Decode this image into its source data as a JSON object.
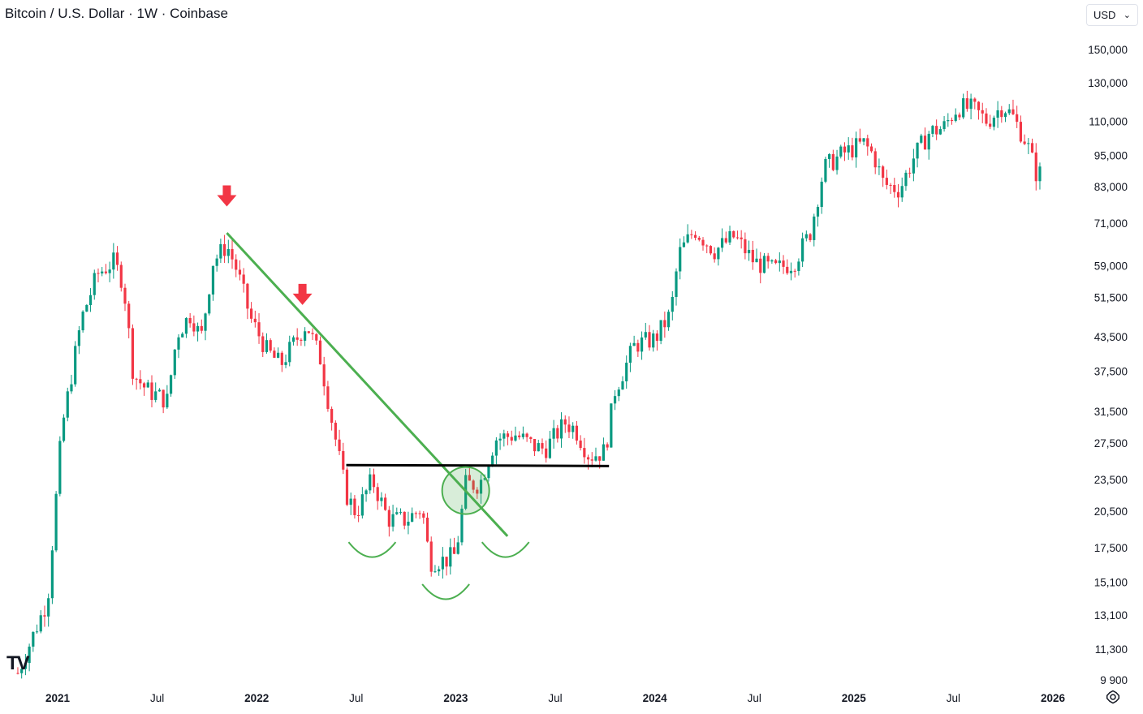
{
  "header": {
    "title": "Bitcoin / U.S. Dollar · 1W · Coinbase",
    "currency": "USD"
  },
  "logo_text": "TV",
  "icons": {
    "currency_dropdown": "chevron-down-icon",
    "settings": "gear-icon"
  },
  "colors": {
    "up": "#089981",
    "down": "#f23645",
    "trendline": "#4caf50",
    "neckline": "#000000",
    "arrow": "#f23645"
  },
  "chart_data": {
    "type": "candlestick",
    "scale": "log",
    "x_ticks": [
      {
        "label": "2021",
        "x": 2021.0,
        "year": true
      },
      {
        "label": "Jul",
        "x": 2021.5,
        "year": false
      },
      {
        "label": "2022",
        "x": 2022.0,
        "year": true
      },
      {
        "label": "Jul",
        "x": 2022.5,
        "year": false
      },
      {
        "label": "2023",
        "x": 2023.0,
        "year": true
      },
      {
        "label": "Jul",
        "x": 2023.5,
        "year": false
      },
      {
        "label": "2024",
        "x": 2024.0,
        "year": true
      },
      {
        "label": "Jul",
        "x": 2024.5,
        "year": false
      },
      {
        "label": "2025",
        "x": 2025.0,
        "year": true
      },
      {
        "label": "Jul",
        "x": 2025.5,
        "year": false
      },
      {
        "label": "2026",
        "x": 2026.0,
        "year": true
      }
    ],
    "y_ticks": [
      {
        "label": "150,000",
        "value": 150000
      },
      {
        "label": "130,000",
        "value": 130000
      },
      {
        "label": "110,000",
        "value": 110000
      },
      {
        "label": "95,000",
        "value": 95000
      },
      {
        "label": "83,000",
        "value": 83000
      },
      {
        "label": "71,000",
        "value": 71000
      },
      {
        "label": "59,000",
        "value": 59000
      },
      {
        "label": "51,500",
        "value": 51500
      },
      {
        "label": "43,500",
        "value": 43500
      },
      {
        "label": "37,500",
        "value": 37500
      },
      {
        "label": "31,500",
        "value": 31500
      },
      {
        "label": "27,500",
        "value": 27500
      },
      {
        "label": "23,500",
        "value": 23500
      },
      {
        "label": "20,500",
        "value": 20500
      },
      {
        "label": "17,500",
        "value": 17500
      },
      {
        "label": "15,100",
        "value": 15100
      },
      {
        "label": "13,100",
        "value": 13100
      },
      {
        "label": "11,300",
        "value": 11300
      },
      {
        "label": "9 900",
        "value": 9900
      }
    ],
    "x_range": [
      2020.8,
      2026.25
    ],
    "y_range": [
      9400,
      165000
    ],
    "price_path": [
      [
        2020.8,
        10200
      ],
      [
        2020.95,
        14000
      ],
      [
        2021.02,
        29000
      ],
      [
        2021.12,
        47000
      ],
      [
        2021.2,
        57000
      ],
      [
        2021.28,
        60000
      ],
      [
        2021.33,
        55000
      ],
      [
        2021.38,
        37000
      ],
      [
        2021.45,
        34500
      ],
      [
        2021.55,
        33000
      ],
      [
        2021.6,
        44000
      ],
      [
        2021.67,
        48000
      ],
      [
        2021.72,
        43000
      ],
      [
        2021.78,
        60000
      ],
      [
        2021.85,
        64500
      ],
      [
        2021.9,
        58000
      ],
      [
        2021.97,
        47000
      ],
      [
        2022.05,
        41000
      ],
      [
        2022.12,
        38500
      ],
      [
        2022.2,
        43000
      ],
      [
        2022.25,
        46000
      ],
      [
        2022.32,
        39500
      ],
      [
        2022.38,
        30000
      ],
      [
        2022.45,
        22000
      ],
      [
        2022.5,
        20300
      ],
      [
        2022.58,
        23500
      ],
      [
        2022.66,
        19800
      ],
      [
        2022.75,
        19700
      ],
      [
        2022.83,
        20800
      ],
      [
        2022.87,
        16500
      ],
      [
        2022.95,
        16600
      ],
      [
        2023.0,
        17000
      ],
      [
        2023.05,
        23000
      ],
      [
        2023.12,
        23000
      ],
      [
        2023.2,
        28000
      ],
      [
        2023.3,
        28500
      ],
      [
        2023.4,
        27000
      ],
      [
        2023.45,
        26800
      ],
      [
        2023.55,
        30000
      ],
      [
        2023.6,
        29200
      ],
      [
        2023.67,
        26000
      ],
      [
        2023.75,
        26500
      ],
      [
        2023.8,
        34500
      ],
      [
        2023.9,
        42000
      ],
      [
        2024.0,
        43000
      ],
      [
        2024.08,
        48000
      ],
      [
        2024.12,
        62000
      ],
      [
        2024.2,
        69000
      ],
      [
        2024.3,
        63000
      ],
      [
        2024.4,
        67000
      ],
      [
        2024.5,
        60000
      ],
      [
        2024.6,
        58000
      ],
      [
        2024.7,
        60000
      ],
      [
        2024.78,
        68000
      ],
      [
        2024.85,
        90000
      ],
      [
        2024.95,
        96000
      ],
      [
        2025.05,
        100000
      ],
      [
        2025.1,
        95000
      ],
      [
        2025.15,
        84000
      ],
      [
        2025.23,
        82000
      ],
      [
        2025.3,
        94000
      ],
      [
        2025.38,
        105000
      ],
      [
        2025.45,
        107000
      ],
      [
        2025.52,
        117000
      ],
      [
        2025.6,
        116000
      ],
      [
        2025.67,
        110000
      ],
      [
        2025.75,
        118000
      ],
      [
        2025.8,
        112000
      ],
      [
        2025.87,
        100000
      ],
      [
        2025.92,
        87000
      ],
      [
        2025.95,
        89000
      ]
    ],
    "annotations": {
      "trendline": [
        [
          2021.85,
          68000
        ],
        [
          2023.26,
          18400
        ]
      ],
      "neckline": [
        [
          2022.45,
          25000
        ],
        [
          2023.77,
          24900
        ]
      ],
      "down_arrows": [
        [
          2021.85,
          79500
        ],
        [
          2022.23,
          52000
        ]
      ],
      "circle": [
        [
          2023.05,
          22400
        ]
      ],
      "smiles": [
        [
          2022.58,
          17500
        ],
        [
          2022.95,
          14600
        ],
        [
          2023.25,
          17500
        ]
      ]
    }
  }
}
